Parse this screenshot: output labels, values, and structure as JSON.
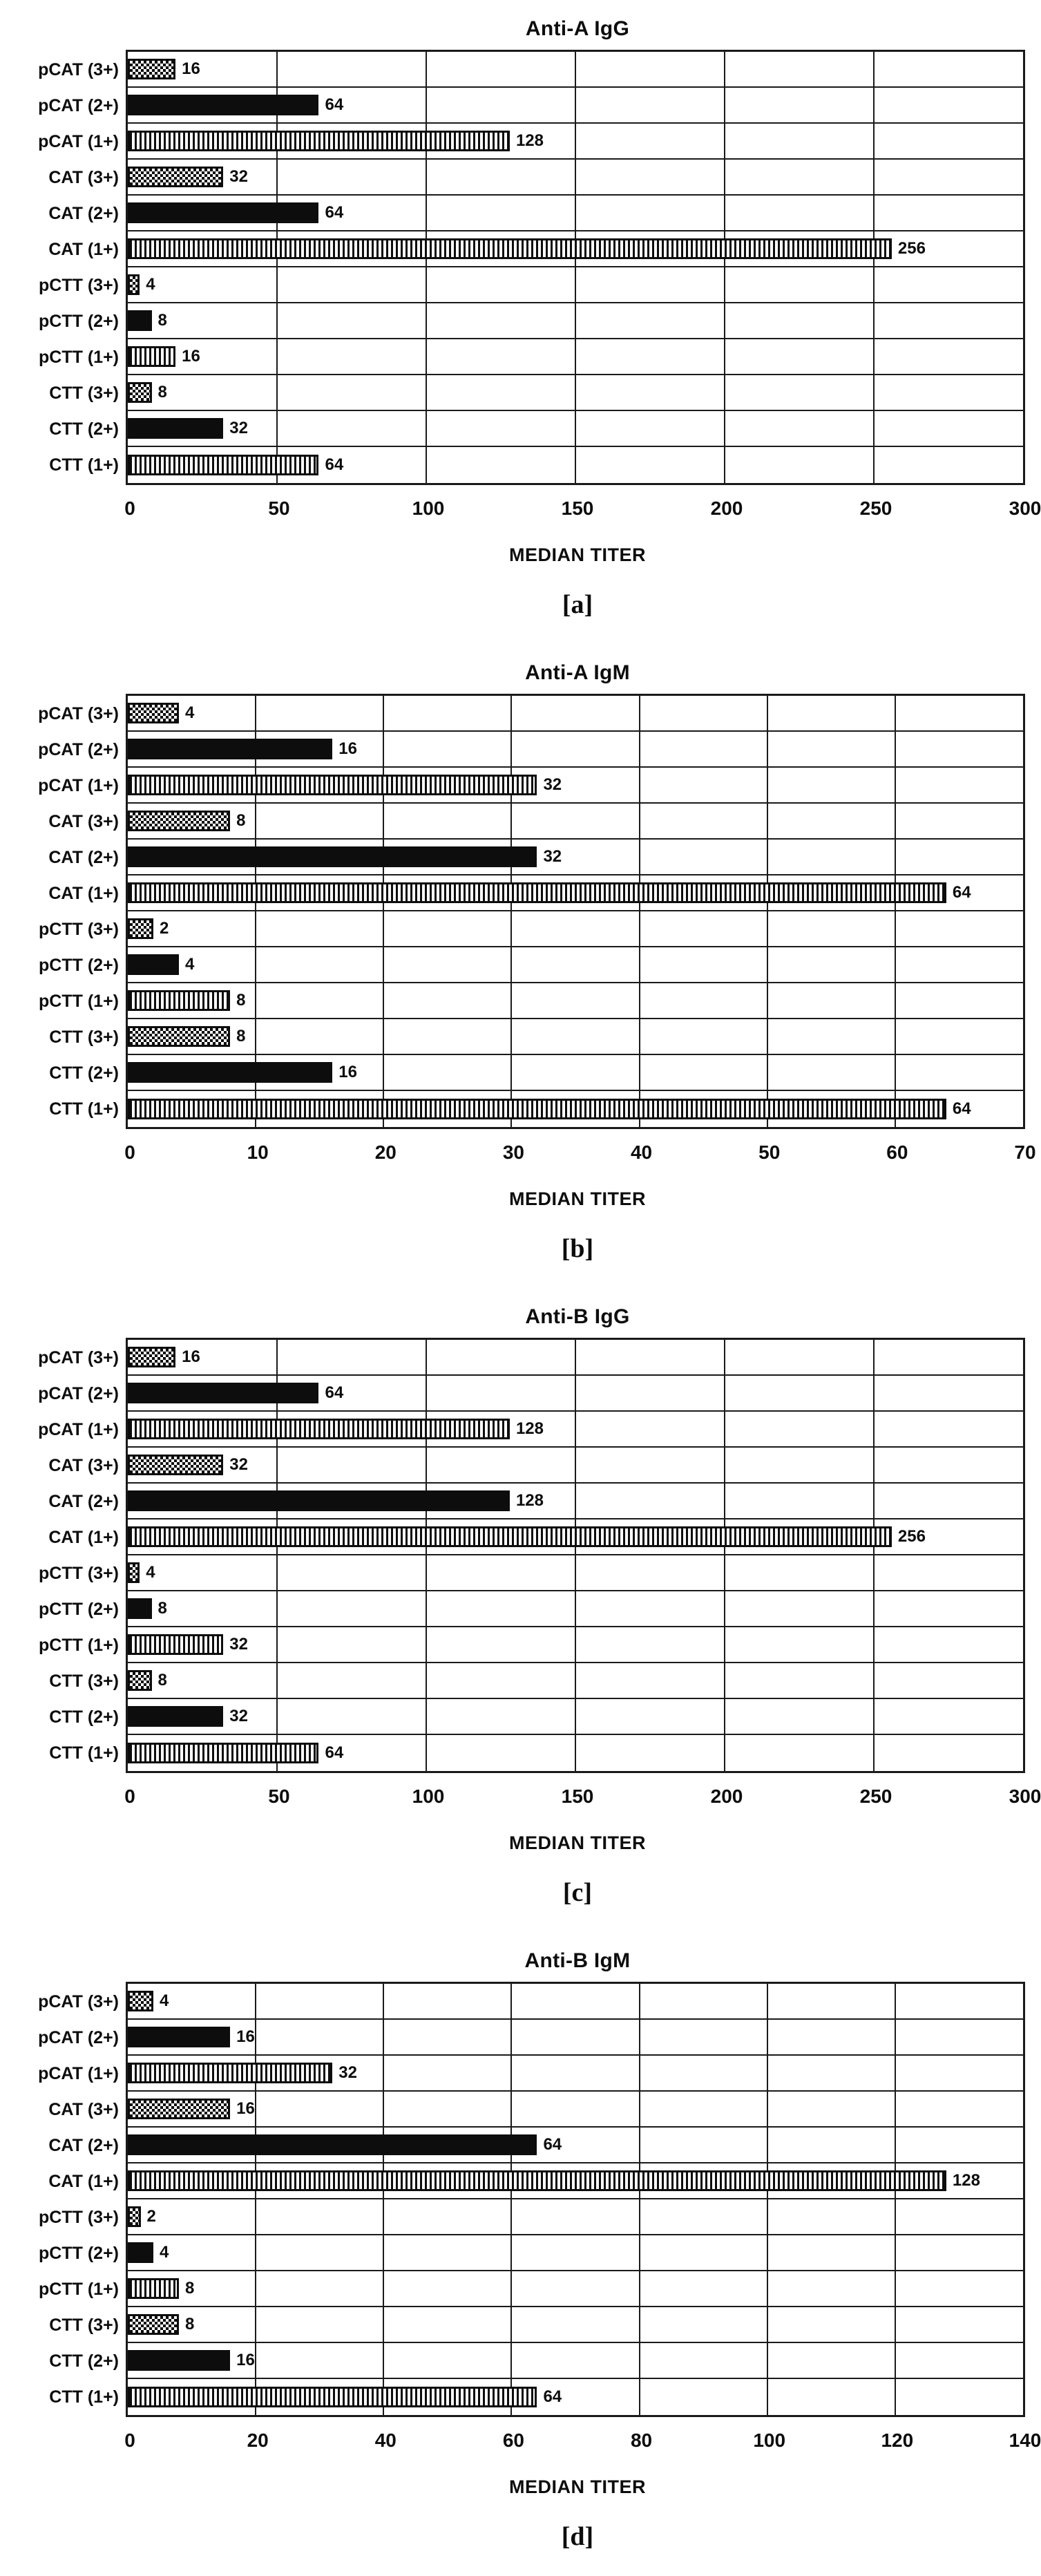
{
  "figure": {
    "background_color": "#ffffff",
    "ink_color": "#0d0d0d",
    "grid_color": "#1a1a1a",
    "bar_patterns_by_grade": {
      "3+": "checker",
      "2+": "solid",
      "1+": "vstripe"
    }
  },
  "chart_data": [
    {
      "type": "bar",
      "orientation": "horizontal",
      "title": "Anti-A IgG",
      "caption": "[a]",
      "xlabel": "MEDIAN TITER",
      "ylabel": "",
      "categories": [
        "pCAT (3+)",
        "pCAT (2+)",
        "pCAT (1+)",
        "CAT (3+)",
        "CAT (2+)",
        "CAT (1+)",
        "pCTT (3+)",
        "pCTT (2+)",
        "pCTT (1+)",
        "CTT (3+)",
        "CTT (2+)",
        "CTT (1+)"
      ],
      "values": [
        16,
        64,
        128,
        32,
        64,
        256,
        4,
        8,
        16,
        8,
        32,
        64
      ],
      "xlim": [
        0,
        300
      ],
      "xticks": [
        0,
        50,
        100,
        150,
        200,
        250,
        300
      ],
      "grid": true,
      "legend": "none"
    },
    {
      "type": "bar",
      "orientation": "horizontal",
      "title": "Anti-A IgM",
      "caption": "[b]",
      "xlabel": "MEDIAN TITER",
      "ylabel": "",
      "categories": [
        "pCAT (3+)",
        "pCAT (2+)",
        "pCAT (1+)",
        "CAT (3+)",
        "CAT (2+)",
        "CAT (1+)",
        "pCTT (3+)",
        "pCTT (2+)",
        "pCTT (1+)",
        "CTT (3+)",
        "CTT (2+)",
        "CTT (1+)"
      ],
      "values": [
        4,
        16,
        32,
        8,
        32,
        64,
        2,
        4,
        8,
        8,
        16,
        64
      ],
      "xlim": [
        0,
        70
      ],
      "xticks": [
        0,
        10,
        20,
        30,
        40,
        50,
        60,
        70
      ],
      "grid": true,
      "legend": "none"
    },
    {
      "type": "bar",
      "orientation": "horizontal",
      "title": "Anti-B IgG",
      "caption": "[c]",
      "xlabel": "MEDIAN TITER",
      "ylabel": "",
      "categories": [
        "pCAT (3+)",
        "pCAT (2+)",
        "pCAT (1+)",
        "CAT (3+)",
        "CAT (2+)",
        "CAT (1+)",
        "pCTT (3+)",
        "pCTT (2+)",
        "pCTT (1+)",
        "CTT (3+)",
        "CTT (2+)",
        "CTT (1+)"
      ],
      "values": [
        16,
        64,
        128,
        32,
        128,
        256,
        4,
        8,
        32,
        8,
        32,
        64
      ],
      "xlim": [
        0,
        300
      ],
      "xticks": [
        0,
        50,
        100,
        150,
        200,
        250,
        300
      ],
      "grid": true,
      "legend": "none"
    },
    {
      "type": "bar",
      "orientation": "horizontal",
      "title": "Anti-B IgM",
      "caption": "[d]",
      "xlabel": "MEDIAN TITER",
      "ylabel": "",
      "categories": [
        "pCAT (3+)",
        "pCAT (2+)",
        "pCAT (1+)",
        "CAT (3+)",
        "CAT (2+)",
        "CAT (1+)",
        "pCTT (3+)",
        "pCTT (2+)",
        "pCTT (1+)",
        "CTT (3+)",
        "CTT (2+)",
        "CTT (1+)"
      ],
      "values": [
        4,
        16,
        32,
        16,
        64,
        128,
        2,
        4,
        8,
        8,
        16,
        64
      ],
      "xlim": [
        0,
        140
      ],
      "xticks": [
        0,
        20,
        40,
        60,
        80,
        100,
        120,
        140
      ],
      "grid": true,
      "legend": "none"
    }
  ]
}
